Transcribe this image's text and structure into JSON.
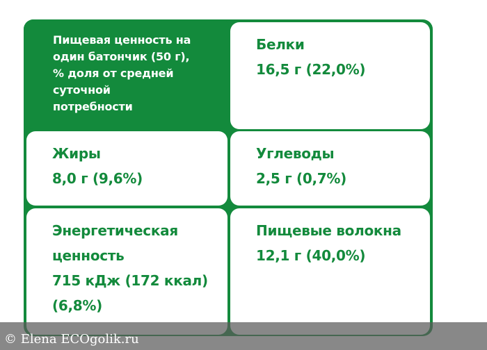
{
  "colors": {
    "accent": "#138a3c",
    "background": "#ffffff",
    "watermark_bar": "#5a5a5a"
  },
  "header": {
    "line1": "Пищевая ценность на",
    "line2": "один батончик (50 г),",
    "line3": "% доля от средней",
    "line4": "суточной",
    "line5": "потребности"
  },
  "cells": {
    "protein": {
      "label": "Белки",
      "value": "16,5 г (22,0%)"
    },
    "fat": {
      "label": "Жиры",
      "value": "8,0 г (9,6%)"
    },
    "carbs": {
      "label": "Углеводы",
      "value": "2,5 г (0,7%)"
    },
    "energy": {
      "label_line1": "Энергетическая",
      "label_line2": "ценность",
      "value_line1": "715 кДж (172 ккал)",
      "value_line2": "(6,8%)"
    },
    "fiber": {
      "label": "Пищевые волокна",
      "value": "12,1 г (40,0%)"
    }
  },
  "watermark": {
    "text": "© Elena ECOgolik.ru"
  }
}
